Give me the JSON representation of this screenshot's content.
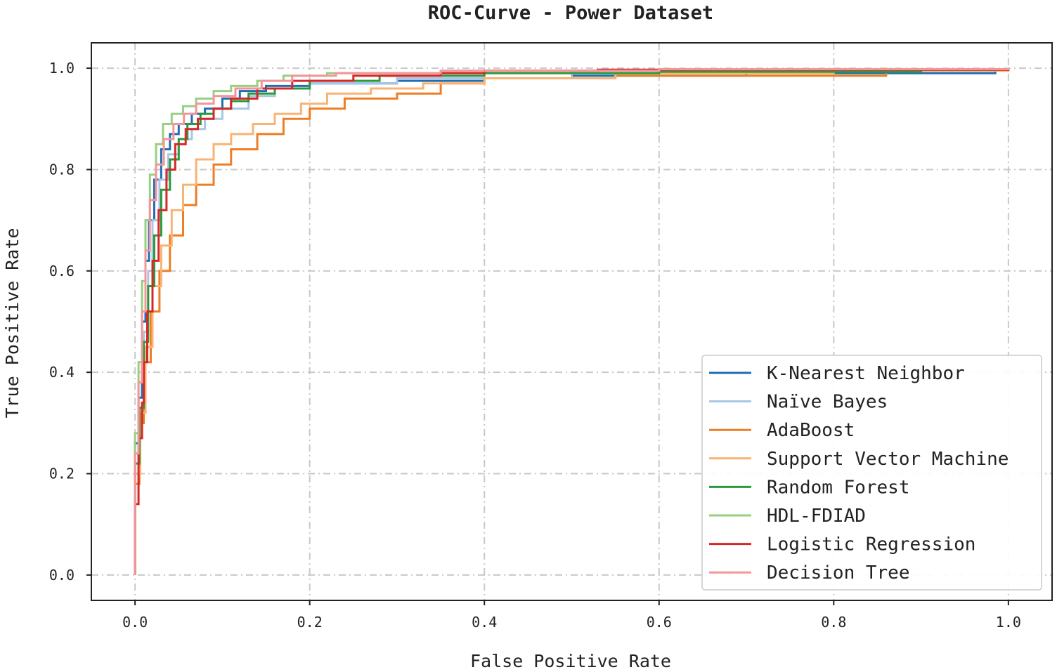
{
  "chart_data": {
    "type": "line",
    "title": "ROC-Curve - Power Dataset",
    "xlabel": "False Positive Rate",
    "ylabel": "True Positive Rate",
    "xlim": [
      -0.05,
      1.05
    ],
    "ylim": [
      -0.05,
      1.05
    ],
    "xticks": [
      "0.0",
      "0.2",
      "0.4",
      "0.6",
      "0.8",
      "1.0"
    ],
    "yticks": [
      "0.0",
      "0.2",
      "0.4",
      "0.6",
      "0.8",
      "1.0"
    ],
    "grid": true,
    "legend_position": "lower-right",
    "series": [
      {
        "name": "K-Nearest Neighbor",
        "color": "#1f6fb4",
        "points": [
          [
            0,
            0
          ],
          [
            0,
            0.26
          ],
          [
            0.004,
            0.35
          ],
          [
            0.008,
            0.5
          ],
          [
            0.012,
            0.62
          ],
          [
            0.016,
            0.7
          ],
          [
            0.022,
            0.78
          ],
          [
            0.03,
            0.84
          ],
          [
            0.04,
            0.87
          ],
          [
            0.05,
            0.89
          ],
          [
            0.065,
            0.91
          ],
          [
            0.08,
            0.92
          ],
          [
            0.1,
            0.94
          ],
          [
            0.12,
            0.955
          ],
          [
            0.15,
            0.965
          ],
          [
            0.2,
            0.97
          ],
          [
            0.3,
            0.975
          ],
          [
            0.4,
            0.98
          ],
          [
            0.5,
            0.985
          ],
          [
            0.7,
            0.99
          ],
          [
            0.985,
            0.995
          ]
        ]
      },
      {
        "name": "Naïve Bayes",
        "color": "#a9c6e4",
        "points": [
          [
            0,
            0
          ],
          [
            0,
            0.2
          ],
          [
            0.005,
            0.33
          ],
          [
            0.01,
            0.48
          ],
          [
            0.015,
            0.6
          ],
          [
            0.02,
            0.7
          ],
          [
            0.028,
            0.78
          ],
          [
            0.038,
            0.83
          ],
          [
            0.05,
            0.86
          ],
          [
            0.065,
            0.88
          ],
          [
            0.08,
            0.9
          ],
          [
            0.1,
            0.92
          ],
          [
            0.13,
            0.945
          ],
          [
            0.16,
            0.96
          ],
          [
            0.2,
            0.97
          ],
          [
            0.3,
            0.98
          ],
          [
            0.5,
            0.99
          ],
          [
            0.75,
            0.995
          ],
          [
            1.0,
            1.0
          ]
        ]
      },
      {
        "name": "AdaBoost",
        "color": "#ef7d24",
        "points": [
          [
            0,
            0
          ],
          [
            0,
            0.18
          ],
          [
            0.005,
            0.3
          ],
          [
            0.01,
            0.42
          ],
          [
            0.018,
            0.52
          ],
          [
            0.028,
            0.6
          ],
          [
            0.04,
            0.67
          ],
          [
            0.055,
            0.73
          ],
          [
            0.07,
            0.77
          ],
          [
            0.09,
            0.81
          ],
          [
            0.11,
            0.84
          ],
          [
            0.14,
            0.87
          ],
          [
            0.17,
            0.9
          ],
          [
            0.2,
            0.92
          ],
          [
            0.24,
            0.94
          ],
          [
            0.3,
            0.95
          ],
          [
            0.35,
            0.97
          ],
          [
            0.4,
            0.98
          ],
          [
            0.55,
            0.985
          ],
          [
            0.86,
            0.99
          ]
        ]
      },
      {
        "name": "Support Vector Machine",
        "color": "#f9b374",
        "points": [
          [
            0,
            0
          ],
          [
            0,
            0.2
          ],
          [
            0.006,
            0.32
          ],
          [
            0.012,
            0.45
          ],
          [
            0.02,
            0.57
          ],
          [
            0.03,
            0.65
          ],
          [
            0.042,
            0.72
          ],
          [
            0.055,
            0.77
          ],
          [
            0.07,
            0.82
          ],
          [
            0.09,
            0.85
          ],
          [
            0.11,
            0.87
          ],
          [
            0.135,
            0.89
          ],
          [
            0.16,
            0.91
          ],
          [
            0.19,
            0.93
          ],
          [
            0.22,
            0.95
          ],
          [
            0.27,
            0.96
          ],
          [
            0.33,
            0.97
          ],
          [
            0.4,
            0.98
          ],
          [
            0.55,
            0.99
          ],
          [
            0.8,
            0.995
          ],
          [
            1.0,
            1.0
          ]
        ]
      },
      {
        "name": "Random Forest",
        "color": "#2a9a3c",
        "points": [
          [
            0,
            0
          ],
          [
            0,
            0.22
          ],
          [
            0.005,
            0.33
          ],
          [
            0.01,
            0.46
          ],
          [
            0.015,
            0.57
          ],
          [
            0.022,
            0.67
          ],
          [
            0.03,
            0.76
          ],
          [
            0.04,
            0.82
          ],
          [
            0.05,
            0.86
          ],
          [
            0.06,
            0.89
          ],
          [
            0.075,
            0.91
          ],
          [
            0.09,
            0.92
          ],
          [
            0.11,
            0.935
          ],
          [
            0.13,
            0.95
          ],
          [
            0.16,
            0.96
          ],
          [
            0.2,
            0.975
          ],
          [
            0.28,
            0.985
          ],
          [
            0.4,
            0.99
          ],
          [
            0.6,
            0.993
          ],
          [
            0.9,
            0.997
          ],
          [
            1.0,
            1.0
          ]
        ]
      },
      {
        "name": "HDL-FDIAD",
        "color": "#98cf83",
        "points": [
          [
            0,
            0
          ],
          [
            0,
            0.28
          ],
          [
            0.004,
            0.42
          ],
          [
            0.008,
            0.58
          ],
          [
            0.012,
            0.7
          ],
          [
            0.017,
            0.79
          ],
          [
            0.024,
            0.85
          ],
          [
            0.032,
            0.89
          ],
          [
            0.042,
            0.91
          ],
          [
            0.055,
            0.925
          ],
          [
            0.07,
            0.94
          ],
          [
            0.09,
            0.955
          ],
          [
            0.11,
            0.965
          ],
          [
            0.14,
            0.975
          ],
          [
            0.17,
            0.985
          ],
          [
            0.22,
            0.99
          ],
          [
            0.35,
            0.995
          ],
          [
            0.6,
            0.998
          ],
          [
            1.0,
            1.0
          ]
        ]
      },
      {
        "name": "Logistic Regression",
        "color": "#d62828",
        "points": [
          [
            0,
            0
          ],
          [
            0,
            0.14
          ],
          [
            0.004,
            0.27
          ],
          [
            0.008,
            0.34
          ],
          [
            0.01,
            0.42
          ],
          [
            0.014,
            0.52
          ],
          [
            0.02,
            0.62
          ],
          [
            0.027,
            0.72
          ],
          [
            0.036,
            0.8
          ],
          [
            0.046,
            0.85
          ],
          [
            0.058,
            0.88
          ],
          [
            0.072,
            0.9
          ],
          [
            0.09,
            0.92
          ],
          [
            0.11,
            0.94
          ],
          [
            0.14,
            0.96
          ],
          [
            0.18,
            0.975
          ],
          [
            0.25,
            0.985
          ],
          [
            0.35,
            0.99
          ],
          [
            0.4,
            0.995
          ],
          [
            0.53,
            0.997
          ],
          [
            1.0,
            1.0
          ]
        ]
      },
      {
        "name": "Decision Tree",
        "color": "#f4959a",
        "points": [
          [
            0,
            0
          ],
          [
            0,
            0.24
          ],
          [
            0.004,
            0.38
          ],
          [
            0.008,
            0.52
          ],
          [
            0.012,
            0.64
          ],
          [
            0.017,
            0.74
          ],
          [
            0.024,
            0.81
          ],
          [
            0.033,
            0.86
          ],
          [
            0.044,
            0.89
          ],
          [
            0.056,
            0.91
          ],
          [
            0.07,
            0.93
          ],
          [
            0.09,
            0.945
          ],
          [
            0.115,
            0.96
          ],
          [
            0.145,
            0.975
          ],
          [
            0.18,
            0.985
          ],
          [
            0.23,
            0.99
          ],
          [
            0.35,
            0.995
          ],
          [
            0.6,
            0.998
          ],
          [
            1.0,
            1.0
          ]
        ]
      }
    ]
  }
}
